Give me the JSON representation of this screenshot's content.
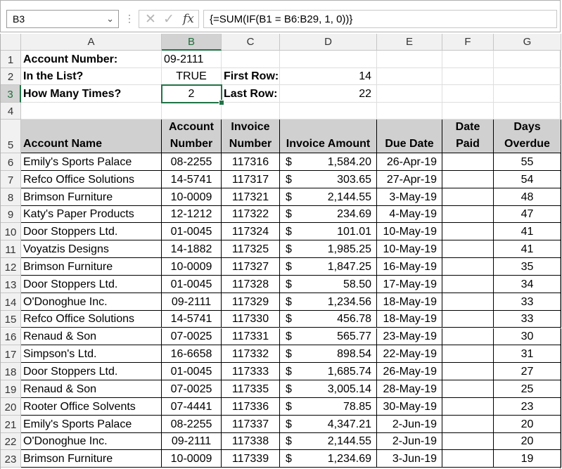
{
  "formula_bar": {
    "name_box": "B3",
    "name_box_arrow": "⌄",
    "dots": "⋮",
    "cancel_glyph": "✕",
    "enter_glyph": "✓",
    "fx_label": "fx",
    "formula": "{=SUM(IF(B1 = B6:B29, 1, 0))}"
  },
  "grid": {
    "selected_cell": "B3",
    "columns": [
      "A",
      "B",
      "C",
      "D",
      "E",
      "F",
      "G"
    ],
    "row_numbers": [
      "1",
      "2",
      "3",
      "4",
      "5",
      "6",
      "7",
      "8",
      "9",
      "10",
      "11",
      "12",
      "13",
      "14",
      "15",
      "16",
      "17",
      "18",
      "19",
      "20",
      "21",
      "22",
      "23"
    ]
  },
  "lookup": {
    "account_number_label": "Account Number:",
    "account_number_value": "09-2111",
    "in_list_label": "In the List?",
    "in_list_value": "TRUE",
    "how_many_label": "How Many Times?",
    "how_many_value": "2",
    "first_row_label": "First Row:",
    "first_row_value": "14",
    "last_row_label": "Last Row:",
    "last_row_value": "22"
  },
  "table": {
    "headers": [
      {
        "line1": "",
        "line2": "Account Name"
      },
      {
        "line1": "Account",
        "line2": "Number"
      },
      {
        "line1": "Invoice",
        "line2": "Number"
      },
      {
        "line1": "",
        "line2": "Invoice Amount"
      },
      {
        "line1": "",
        "line2": "Due Date"
      },
      {
        "line1": "Date",
        "line2": "Paid"
      },
      {
        "line1": "Days",
        "line2": "Overdue"
      }
    ],
    "currency_symbol": "$",
    "rows": [
      {
        "name": "Emily's Sports Palace",
        "acct": "08-2255",
        "inv": "117316",
        "amt": "1,584.20",
        "due": "26-Apr-19",
        "paid": "",
        "days": "55"
      },
      {
        "name": "Refco Office Solutions",
        "acct": "14-5741",
        "inv": "117317",
        "amt": "303.65",
        "due": "27-Apr-19",
        "paid": "",
        "days": "54"
      },
      {
        "name": "Brimson Furniture",
        "acct": "10-0009",
        "inv": "117321",
        "amt": "2,144.55",
        "due": "3-May-19",
        "paid": "",
        "days": "48"
      },
      {
        "name": "Katy's Paper Products",
        "acct": "12-1212",
        "inv": "117322",
        "amt": "234.69",
        "due": "4-May-19",
        "paid": "",
        "days": "47"
      },
      {
        "name": "Door Stoppers Ltd.",
        "acct": "01-0045",
        "inv": "117324",
        "amt": "101.01",
        "due": "10-May-19",
        "paid": "",
        "days": "41"
      },
      {
        "name": "Voyatzis Designs",
        "acct": "14-1882",
        "inv": "117325",
        "amt": "1,985.25",
        "due": "10-May-19",
        "paid": "",
        "days": "41"
      },
      {
        "name": "Brimson Furniture",
        "acct": "10-0009",
        "inv": "117327",
        "amt": "1,847.25",
        "due": "16-May-19",
        "paid": "",
        "days": "35"
      },
      {
        "name": "Door Stoppers Ltd.",
        "acct": "01-0045",
        "inv": "117328",
        "amt": "58.50",
        "due": "17-May-19",
        "paid": "",
        "days": "34"
      },
      {
        "name": "O'Donoghue Inc.",
        "acct": "09-2111",
        "inv": "117329",
        "amt": "1,234.56",
        "due": "18-May-19",
        "paid": "",
        "days": "33"
      },
      {
        "name": "Refco Office Solutions",
        "acct": "14-5741",
        "inv": "117330",
        "amt": "456.78",
        "due": "18-May-19",
        "paid": "",
        "days": "33"
      },
      {
        "name": "Renaud & Son",
        "acct": "07-0025",
        "inv": "117331",
        "amt": "565.77",
        "due": "23-May-19",
        "paid": "",
        "days": "30"
      },
      {
        "name": "Simpson's Ltd.",
        "acct": "16-6658",
        "inv": "117332",
        "amt": "898.54",
        "due": "22-May-19",
        "paid": "",
        "days": "31"
      },
      {
        "name": "Door Stoppers Ltd.",
        "acct": "01-0045",
        "inv": "117333",
        "amt": "1,685.74",
        "due": "26-May-19",
        "paid": "",
        "days": "27"
      },
      {
        "name": "Renaud & Son",
        "acct": "07-0025",
        "inv": "117335",
        "amt": "3,005.14",
        "due": "28-May-19",
        "paid": "",
        "days": "25"
      },
      {
        "name": "Rooter Office Solvents",
        "acct": "07-4441",
        "inv": "117336",
        "amt": "78.85",
        "due": "30-May-19",
        "paid": "",
        "days": "23"
      },
      {
        "name": "Emily's Sports Palace",
        "acct": "08-2255",
        "inv": "117337",
        "amt": "4,347.21",
        "due": "2-Jun-19",
        "paid": "",
        "days": "20"
      },
      {
        "name": "O'Donoghue Inc.",
        "acct": "09-2111",
        "inv": "117338",
        "amt": "2,144.55",
        "due": "2-Jun-19",
        "paid": "",
        "days": "20"
      },
      {
        "name": "Brimson Furniture",
        "acct": "10-0009",
        "inv": "117339",
        "amt": "1,234.69",
        "due": "3-Jun-19",
        "paid": "",
        "days": "19"
      }
    ]
  }
}
